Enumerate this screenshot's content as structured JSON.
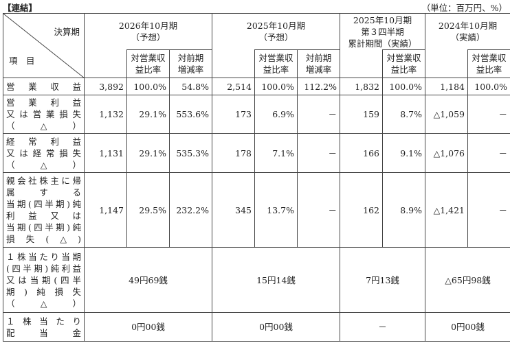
{
  "header": {
    "label": "【連結】",
    "unit": "（単位：百万円、%）"
  },
  "table": {
    "corner": {
      "top": "決算期",
      "bottom": "項　目"
    },
    "periods": [
      {
        "lines": [
          "2026年10月期",
          "（予想）"
        ],
        "subheaders": [
          [
            "対営業収",
            "益比率"
          ],
          [
            "対前期",
            "増減率"
          ]
        ]
      },
      {
        "lines": [
          "2025年10月期",
          "（予想）"
        ],
        "subheaders": [
          [
            "対営業収",
            "益比率"
          ],
          [
            "対前期",
            "増減率"
          ]
        ]
      },
      {
        "lines": [
          "2025年10月期",
          "第３四半期",
          "累計期間（実績）"
        ],
        "subheaders": [
          [
            "対営業収",
            "益比率"
          ]
        ]
      },
      {
        "lines": [
          "2024年10月期",
          "（実績）"
        ],
        "subheaders": [
          [
            "対営業収",
            "益比率"
          ]
        ]
      }
    ],
    "rows": [
      {
        "label": [
          "営業収益"
        ],
        "cells": [
          "3,892",
          "100.0%",
          "54.8%",
          "2,514",
          "100.0%",
          "112.2%",
          "1,832",
          "100.0%",
          "1,184",
          "100.0%"
        ]
      },
      {
        "label": [
          "営業利益",
          "又は営業損失",
          "（△）"
        ],
        "cells": [
          "1,132",
          "29.1%",
          "553.6%",
          "173",
          "6.9%",
          "－",
          "159",
          "8.7%",
          "△1,059",
          "－"
        ]
      },
      {
        "label": [
          "経常利益",
          "又は経常損失",
          "（△）"
        ],
        "cells": [
          "1,131",
          "29.1%",
          "535.3%",
          "178",
          "7.1%",
          "－",
          "166",
          "9.1%",
          "△1,076",
          "－"
        ]
      },
      {
        "label": [
          "親会社株主に帰",
          "属する",
          "当期(四半期)純",
          "利益又は",
          "当期(四半期)純",
          "損失(△)"
        ],
        "cells": [
          "1,147",
          "29.5%",
          "232.2%",
          "345",
          "13.7%",
          "－",
          "162",
          "8.9%",
          "△1,421",
          "－"
        ]
      },
      {
        "label": [
          "１株当たり当期",
          "(四半期)純利益",
          "又は当期(四半",
          "期)純損失",
          "（△）"
        ],
        "merged": [
          "49円69銭",
          "15円14銭",
          "7円13銭",
          "△65円98銭"
        ]
      },
      {
        "label": [
          "１株当たり",
          "配当金"
        ],
        "merged": [
          "0円00銭",
          "0円00銭",
          "－",
          "0円00銭"
        ]
      }
    ]
  }
}
